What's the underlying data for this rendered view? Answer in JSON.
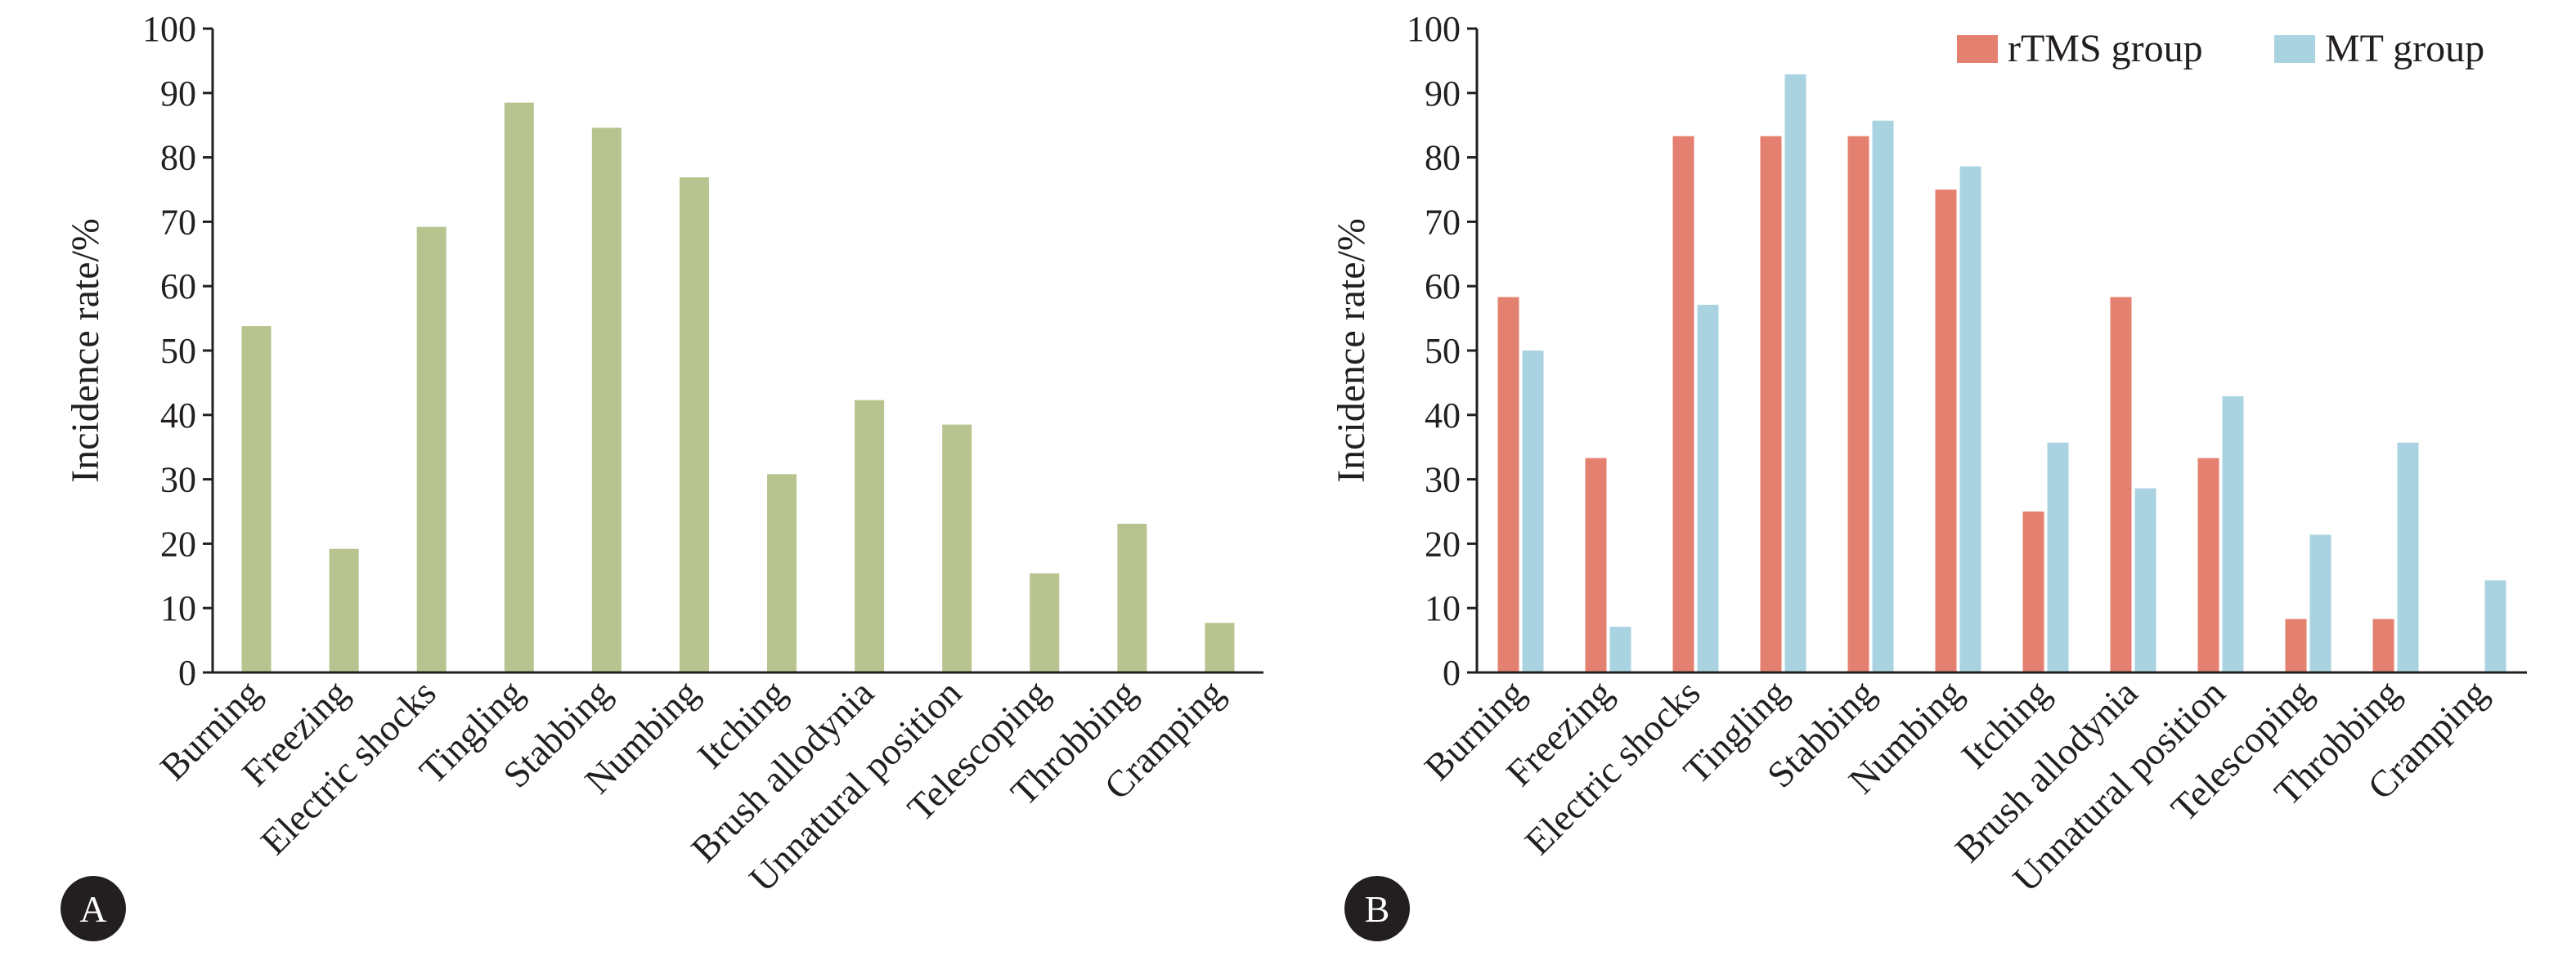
{
  "panels": [
    {
      "label": "A"
    },
    {
      "label": "B"
    }
  ],
  "colors": {
    "single": "#b8c48f",
    "rTMS": "#e4806f",
    "MT": "#a9d3e0",
    "badge": "#231f20"
  },
  "chart_data": [
    {
      "type": "bar",
      "panel": "A",
      "ylabel": "Incidence rate/%",
      "ylim": [
        0,
        100
      ],
      "yticks": [
        "0",
        "10",
        "20",
        "30",
        "40",
        "50",
        "60",
        "70",
        "80",
        "90",
        "100"
      ],
      "categories": [
        "Burning",
        "Freezing",
        "Electric shocks",
        "Tingling",
        "Stabbing",
        "Numbing",
        "Itching",
        "Brush allodynia",
        "Unnatural position",
        "Telescoping",
        "Throbbing",
        "Cramping"
      ],
      "series": [
        {
          "values": [
            53.8,
            19.2,
            69.2,
            88.5,
            84.6,
            76.9,
            30.8,
            42.3,
            38.5,
            15.4,
            23.1,
            7.7
          ]
        }
      ],
      "legend": "none"
    },
    {
      "type": "bar",
      "panel": "B",
      "ylabel": "Incidence rate/%",
      "ylim": [
        0,
        100
      ],
      "yticks": [
        "0",
        "10",
        "20",
        "30",
        "40",
        "50",
        "60",
        "70",
        "80",
        "90",
        "100"
      ],
      "categories": [
        "Burning",
        "Freezing",
        "Electric shocks",
        "Tingling",
        "Stabbing",
        "Numbing",
        "Itching",
        "Brush allodynia",
        "Unnatural position",
        "Telescoping",
        "Throbbing",
        "Cramping"
      ],
      "series": [
        {
          "name": "rTMS group",
          "values": [
            58.3,
            33.3,
            83.3,
            83.3,
            83.3,
            75.0,
            25.0,
            58.3,
            33.3,
            8.3,
            8.3,
            0
          ]
        },
        {
          "name": "MT group",
          "values": [
            50.0,
            7.1,
            57.1,
            92.9,
            85.7,
            78.6,
            35.7,
            28.6,
            42.9,
            21.4,
            35.7,
            14.3
          ]
        }
      ],
      "legend": "top-right"
    }
  ]
}
